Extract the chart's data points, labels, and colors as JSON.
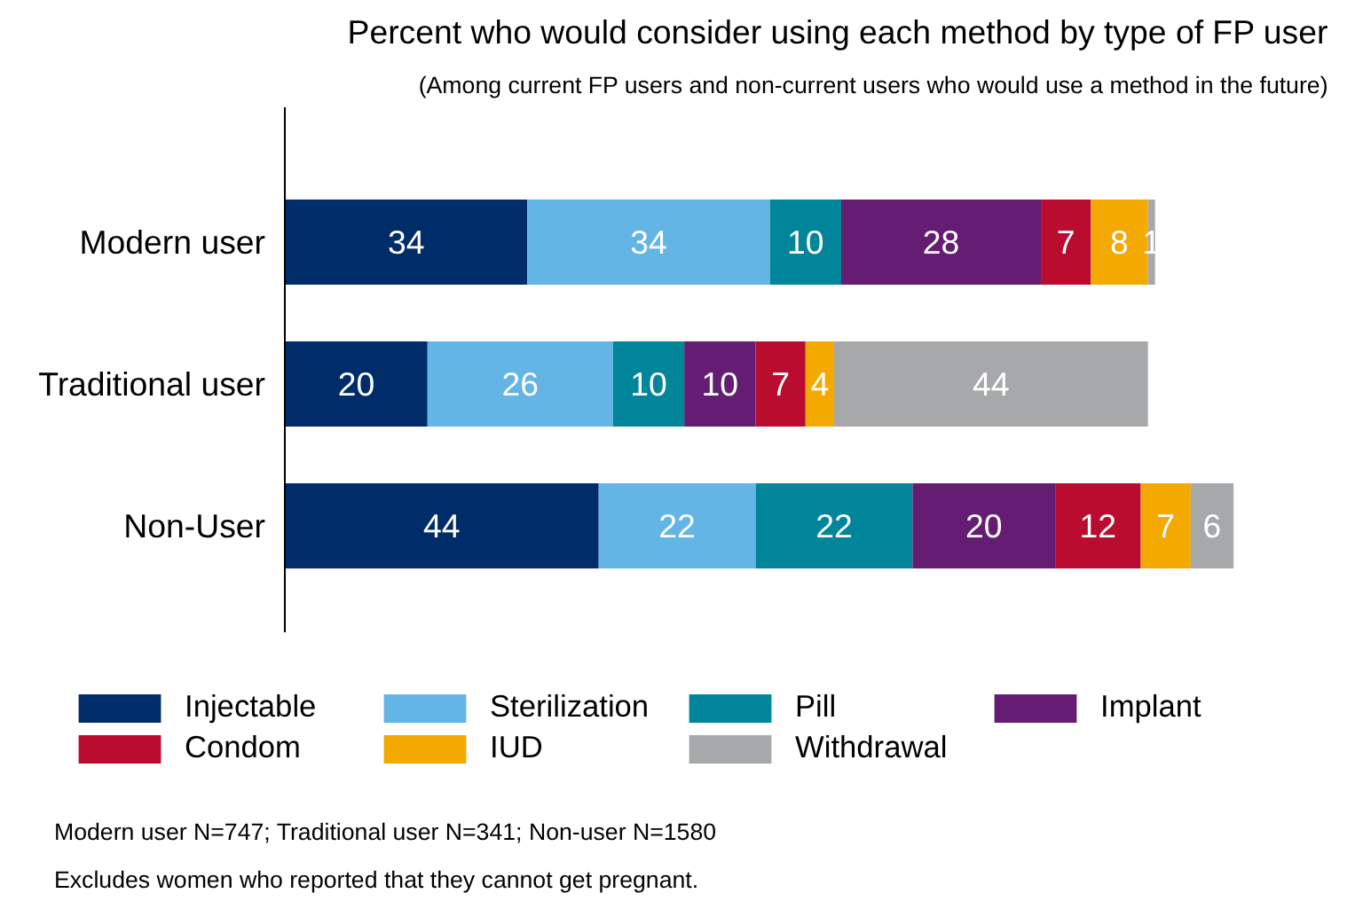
{
  "chart_data": {
    "type": "bar",
    "orientation": "horizontal",
    "stacked": true,
    "data_labels": true,
    "legend": "bottom",
    "grid": false,
    "title": "Percent who would consider using each method by type of FP user",
    "subtitle": "(Among current FP users and non-current users who would use a method in the future)",
    "categories": [
      "Modern user",
      "Traditional user",
      "Non-User"
    ],
    "series": [
      {
        "name": "Injectable",
        "color": "#002d6a",
        "values": [
          34,
          20,
          44
        ]
      },
      {
        "name": "Sterilization",
        "color": "#62b5e5",
        "values": [
          34,
          26,
          22
        ]
      },
      {
        "name": "Pill",
        "color": "#00859b",
        "values": [
          10,
          10,
          22
        ]
      },
      {
        "name": "Implant",
        "color": "#651d73",
        "values": [
          28,
          10,
          20
        ]
      },
      {
        "name": "Condom",
        "color": "#ba0c2f",
        "values": [
          7,
          7,
          12
        ]
      },
      {
        "name": "IUD",
        "color": "#f4a900",
        "values": [
          8,
          4,
          7
        ]
      },
      {
        "name": "Withdrawal",
        "color": "#a7a8aa",
        "values": [
          1,
          44,
          6
        ]
      }
    ],
    "annotations": [
      "Modern user N=747; Traditional user N=341; Non-user N=1580",
      "Excludes women who reported that they cannot get pregnant."
    ]
  }
}
